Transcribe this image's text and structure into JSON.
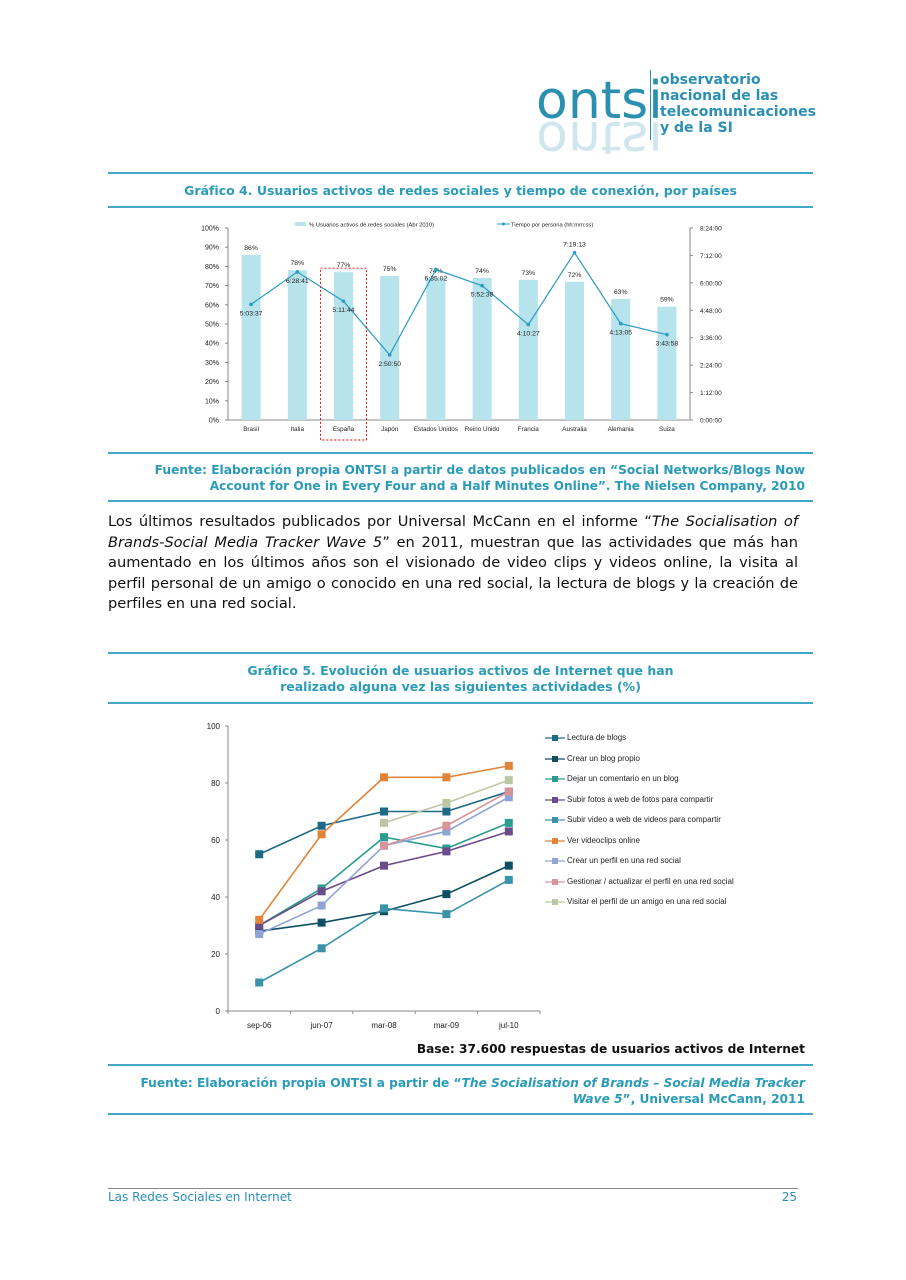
{
  "header": {
    "logo": "ontsi",
    "org_lines": [
      "observatorio",
      "nacional de las",
      "telecomunicaciones",
      "y de la SI"
    ]
  },
  "figures": [
    {
      "title": "Gráfico 4. Usuarios activos de redes sociales y tiempo de conexión, por países",
      "source": [
        "Fuente: Elaboración propia ONTSI a partir de datos publicados en “Social Networks/Blogs Now Account for One in Every Four and a Half Minutes Online”. The Nielsen Company, 2010"
      ]
    },
    {
      "title": "Gráfico 5. Evolución de usuarios activos de Internet que han realizado alguna vez las siguientes actividades (%)",
      "base": "Base: 37.600 respuestas de usuarios activos de Internet",
      "source": [
        "Fuente: Elaboración propia ONTSI a partir de “",
        "The Socialisation of Brands – Social Media Tracker Wave 5",
        "”, Universal McCann, 2011"
      ]
    }
  ],
  "body": {
    "paragraph": [
      "Los últimos resultados publicados por Universal McCann en el informe “",
      "The Socialisation of Brands-Social Media Tracker Wave 5",
      "” en 2011, muestran que las actividades que más han aumentado en los últimos años son el visionado de video clips y videos online, la visita al perfil personal de un amigo o conocido en una red social, la lectura de blogs y la creación de perfiles en una red social."
    ]
  },
  "chart_data": [
    {
      "type": "bar",
      "categories": [
        "Brasil",
        "Italia",
        "España",
        "Japón",
        "Estados Unidos",
        "Reino Unido",
        "Francia",
        "Australia",
        "Alemania",
        "Suiza"
      ],
      "series": [
        {
          "name": "% Usuarios activos de redes sociales (Abr 2010)",
          "color": "#b7e3ec",
          "values": [
            86,
            78,
            77,
            75,
            74,
            74,
            73,
            72,
            63,
            59
          ],
          "value_labels": [
            "86%",
            "78%",
            "77%",
            "75%",
            "74%",
            "74%",
            "73%",
            "72%",
            "63%",
            "59%"
          ]
        },
        {
          "name": "Tiempo por persona (hh:mm:ss)",
          "type": "line",
          "axis": "y2",
          "color": "#2a9bc4",
          "values": [
            18217,
            23321,
            18704,
            10250,
            23702,
            21158,
            15027,
            26353,
            15185,
            13438
          ],
          "value_labels": [
            "5:03:37",
            "6:28:41",
            "5:11:44",
            "2:50:50",
            "6:35:02",
            "5:52:38",
            "4:10:27",
            "7:19:13",
            "4:13:05",
            "3:43:58"
          ]
        }
      ],
      "ylim": [
        0,
        100
      ],
      "yticks": [
        {
          "value": 0,
          "label": "0%"
        },
        {
          "value": 10,
          "label": "10%"
        },
        {
          "value": 20,
          "label": "20%"
        },
        {
          "value": 30,
          "label": "30%"
        },
        {
          "value": 40,
          "label": "40%"
        },
        {
          "value": 50,
          "label": "50%"
        },
        {
          "value": 60,
          "label": "60%"
        },
        {
          "value": 70,
          "label": "70%"
        },
        {
          "value": 80,
          "label": "80%"
        },
        {
          "value": 90,
          "label": "90%"
        },
        {
          "value": 100,
          "label": "100%"
        }
      ],
      "y2lim": [
        0,
        30240
      ],
      "y2ticks": [
        {
          "value": 0,
          "label": "0:00:00"
        },
        {
          "value": 4320,
          "label": "1:12:00"
        },
        {
          "value": 8640,
          "label": "2:24:00"
        },
        {
          "value": 12960,
          "label": "3:36:00"
        },
        {
          "value": 17280,
          "label": "4:48:00"
        },
        {
          "value": 21600,
          "label": "6:00:00"
        },
        {
          "value": 25920,
          "label": "7:12:00"
        },
        {
          "value": 30240,
          "label": "8:24:00"
        }
      ],
      "legend": "top"
    },
    {
      "type": "line",
      "categories": [
        "sep-06",
        "jun-07",
        "mar-08",
        "mar-09",
        "jul-10"
      ],
      "series": [
        {
          "name": "Lectura de blogs",
          "color": "#1d6a86",
          "values": [
            55,
            65,
            70,
            70,
            77
          ]
        },
        {
          "name": "Crear un blog propio",
          "color": "#0f4f63",
          "values": [
            28,
            31,
            35,
            41,
            51
          ]
        },
        {
          "name": "Dejar un comentario en un blog",
          "color": "#2a9d8f",
          "values": [
            30,
            43,
            61,
            57,
            66
          ]
        },
        {
          "name": "Subir fotos a web de fotos para compartir",
          "color": "#6b4c8a",
          "values": [
            30,
            42,
            51,
            56,
            63
          ]
        },
        {
          "name": "Subir video a web de videos para compartir",
          "color": "#3a93a8",
          "values": [
            10,
            22,
            36,
            34,
            46
          ]
        },
        {
          "name": "Ver videoclips online",
          "color": "#e0843a",
          "values": [
            32,
            62,
            82,
            82,
            86
          ]
        },
        {
          "name": "Crear un perfil en una red social",
          "color": "#8fa4d4",
          "values": [
            27,
            37,
            58,
            63,
            75
          ]
        },
        {
          "name": "Gestionar / actualizar el perfil en una red social",
          "color": "#d9939b",
          "values": [
            null,
            null,
            58,
            65,
            77
          ]
        },
        {
          "name": "Visitar el perfil de un amigo en una red social",
          "color": "#bcc6a4",
          "values": [
            null,
            null,
            66,
            73,
            81
          ]
        }
      ],
      "ylim": [
        0,
        100
      ],
      "yticks": [
        0,
        20,
        40,
        60,
        80,
        100
      ],
      "legend": "right"
    }
  ],
  "footer": {
    "left": "Las Redes Sociales en Internet",
    "page": 25
  }
}
